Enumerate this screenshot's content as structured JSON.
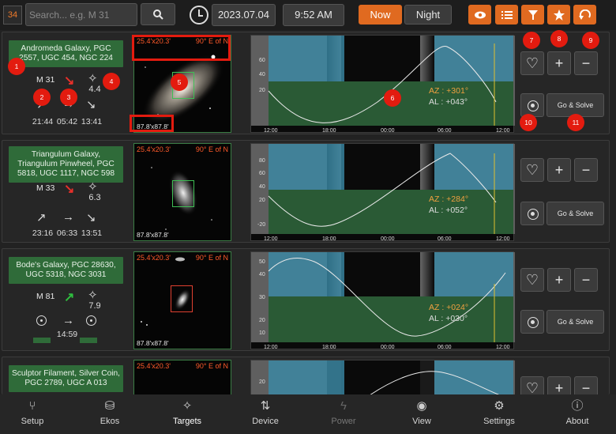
{
  "topbar": {
    "count": "34",
    "search_placeholder": "Search... e.g. M 31",
    "date": "2023.07.04",
    "time": "9:52 AM",
    "now_label": "Now",
    "night_label": "Night",
    "icons": [
      "eye-icon",
      "list-icon",
      "filter-icon",
      "star-icon",
      "undo-icon"
    ],
    "accent_color": "#e06a20"
  },
  "targets": [
    {
      "name": "Andromeda Galaxy, PGC 2557, UGC 454, NGC 224",
      "id": "M 31",
      "trend": "down-right",
      "magnitude": "4.4",
      "rise": "21:44",
      "transit": "05:42",
      "set": "13:41",
      "fov": "25.4'x20.3'",
      "pa": "90° E of N",
      "size": "87.8'x87.8'",
      "az": "AZ : +301°",
      "al": "AL : +043°",
      "y_ticks": [
        "60",
        "40",
        "20"
      ],
      "x_ticks": [
        "12:00",
        "18:00",
        "00:00",
        "06:00",
        "12:00"
      ],
      "go_solve": "Go & Solve"
    },
    {
      "name": "Triangulum Galaxy, Triangulum Pinwheel, PGC 5818, UGC 1117, NGC 598",
      "id": "M 33",
      "trend": "down-right",
      "magnitude": "6.3",
      "rise": "23:16",
      "transit": "06:33",
      "set": "13:51",
      "fov": "25.4'x20.3'",
      "pa": "90° E of N",
      "size": "87.8'x87.8'",
      "az": "AZ : +284°",
      "al": "AL : +052°",
      "y_ticks": [
        "80",
        "60",
        "40",
        "20",
        "-20"
      ],
      "x_ticks": [
        "12:00",
        "18:00",
        "00:00",
        "06:00",
        "12:00"
      ],
      "go_solve": "Go & Solve"
    },
    {
      "name": "Bode's Galaxy, PGC 28630, UGC 5318, NGC 3031",
      "id": "M 81",
      "trend": "up-right",
      "magnitude": "7.9",
      "rise": "",
      "transit": "14:59",
      "set": "",
      "fov": "25.4'x20.3'",
      "pa": "90° E of N",
      "size": "87.8'x87.8'",
      "az": "AZ : +024°",
      "al": "AL : +030°",
      "y_ticks": [
        "50",
        "40",
        "30",
        "20",
        "10"
      ],
      "x_ticks": [
        "12:00",
        "18:00",
        "00:00",
        "06:00",
        "12:00"
      ],
      "go_solve": "Go & Solve"
    },
    {
      "name": "Sculptor Filament, Silver Coin, PGC 2789, UGC A 013",
      "fov": "25.4'x20.3'",
      "pa": "90° E of N",
      "y_ticks": [
        "20"
      ]
    }
  ],
  "markers": [
    "1",
    "2",
    "3",
    "4",
    "5",
    "6",
    "7",
    "8",
    "9",
    "10",
    "11"
  ],
  "nav": [
    {
      "label": "Setup",
      "icon": "setup-icon"
    },
    {
      "label": "Ekos",
      "icon": "ekos-icon"
    },
    {
      "label": "Targets",
      "icon": "targets-icon"
    },
    {
      "label": "Device",
      "icon": "device-icon"
    },
    {
      "label": "Power",
      "icon": "power-icon"
    },
    {
      "label": "View",
      "icon": "view-icon"
    },
    {
      "label": "Settings",
      "icon": "settings-icon"
    },
    {
      "label": "About",
      "icon": "about-icon"
    }
  ],
  "colors": {
    "name_bg": "#2f6b39",
    "sky_day": "#3a8aa6",
    "sky_night": "#2a5a35",
    "trend_down": "#e8302a",
    "trend_up": "#2fbf3f",
    "az_color": "#f0a040",
    "marker": "#e31b0f"
  }
}
